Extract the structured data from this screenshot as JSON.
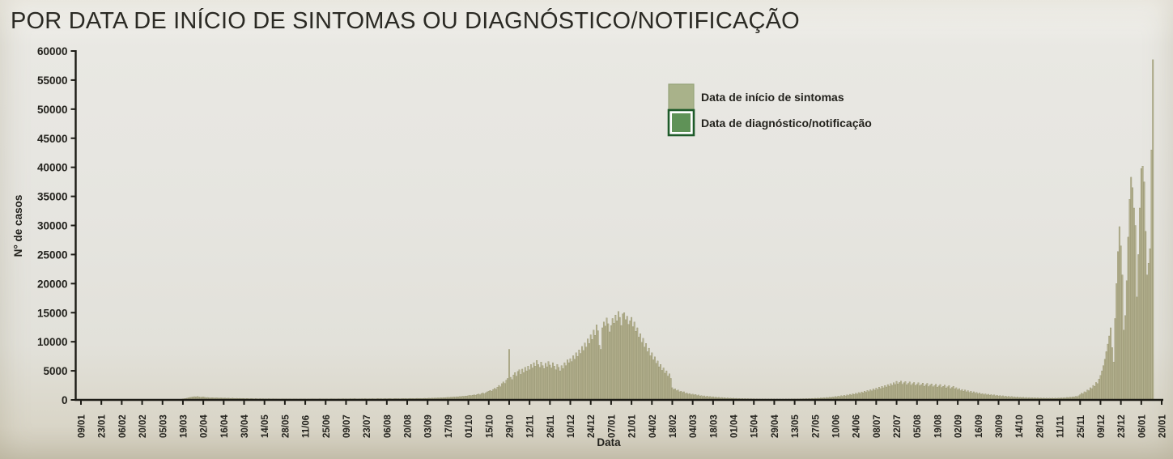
{
  "window": {
    "title": "POR DATA DE INÍCIO DE SINTOMAS OU DIAGNÓSTICO/NOTIFICAÇÃO"
  },
  "chart_data": {
    "type": "bar",
    "title": "POR DATA DE INÍCIO DE SINTOMAS OU DIAGNÓSTICO/NOTIFICAÇÃO",
    "xlabel": "Data",
    "ylabel": "N° de casos",
    "ylim": [
      0,
      60000
    ],
    "ytick_step": 5000,
    "grid": false,
    "axis_color": "#1d1c16",
    "x_tick_interval_days": 14,
    "x_tick_labels": [
      "09/01",
      "23/01",
      "06/02",
      "20/02",
      "05/03",
      "19/03",
      "02/04",
      "16/04",
      "30/04",
      "14/05",
      "28/05",
      "11/06",
      "25/06",
      "09/07",
      "23/07",
      "06/08",
      "20/08",
      "03/09",
      "17/09",
      "01/10",
      "15/10",
      "29/10",
      "12/11",
      "26/11",
      "10/12",
      "24/12",
      "07/01",
      "21/01",
      "04/02",
      "18/02",
      "04/03",
      "18/03",
      "01/04",
      "15/04",
      "29/04",
      "13/05",
      "27/05",
      "10/06",
      "24/06",
      "08/07",
      "22/07",
      "05/08",
      "19/08",
      "02/09",
      "16/09",
      "30/09",
      "14/10",
      "28/10",
      "11/11",
      "25/11",
      "09/12",
      "23/12",
      "06/01",
      "20/01"
    ],
    "legend_position": "top-center",
    "legend": [
      {
        "label": "Data de início de sintomas",
        "fill": "#a9b28a",
        "border": "#96a47a"
      },
      {
        "label": "Data de diagnóstico/notificação",
        "fill": "#5f9257",
        "border": "#1e5b2a"
      }
    ],
    "series": [
      {
        "name": "Data de início de sintomas",
        "color": "#b3b08e",
        "edge": "#8a8862",
        "values": [
          0,
          0,
          0,
          0,
          0,
          0,
          0,
          0,
          0,
          0,
          0,
          0,
          0,
          0,
          0,
          0,
          0,
          2,
          0,
          0,
          0,
          0,
          3,
          0,
          0,
          2,
          0,
          0,
          0,
          2,
          0,
          0,
          4,
          0,
          0,
          3,
          0,
          5,
          0,
          0,
          4,
          0,
          5,
          0,
          3,
          6,
          0,
          8,
          4,
          10,
          6,
          12,
          8,
          15,
          10,
          18,
          22,
          15,
          28,
          20,
          35,
          30,
          45,
          40,
          60,
          55,
          80,
          75,
          110,
          130,
          170,
          210,
          260,
          310,
          380,
          430,
          480,
          520,
          560,
          540,
          580,
          510,
          470,
          490,
          520,
          450,
          400,
          430,
          380,
          350,
          390,
          360,
          330,
          370,
          340,
          310,
          350,
          320,
          300,
          330,
          280,
          310,
          290,
          260,
          300,
          270,
          250,
          280,
          240,
          270,
          230,
          260,
          240,
          210,
          250,
          220,
          200,
          240,
          210,
          190,
          230,
          200,
          180,
          220,
          190,
          210,
          180,
          200,
          170,
          210,
          180,
          160,
          200,
          170,
          190,
          160,
          180,
          150,
          190,
          170,
          160,
          190,
          150,
          180,
          160,
          140,
          180,
          150,
          170,
          140,
          160,
          180,
          150,
          170,
          160,
          140,
          180,
          150,
          170,
          190,
          160,
          180,
          150,
          170,
          200,
          160,
          180,
          160,
          190,
          170,
          150,
          180,
          200,
          170,
          190,
          160,
          180,
          200,
          170,
          190,
          210,
          180,
          200,
          170,
          190,
          210,
          180,
          200,
          220,
          190,
          170,
          200,
          180,
          210,
          190,
          220,
          200,
          180,
          210,
          190,
          220,
          200,
          180,
          210,
          230,
          200,
          220,
          190,
          210,
          230,
          200,
          220,
          240,
          210,
          190,
          220,
          240,
          210,
          230,
          200,
          220,
          250,
          220,
          240,
          210,
          230,
          260,
          230,
          250,
          220,
          240,
          270,
          240,
          260,
          230,
          250,
          280,
          260,
          280,
          300,
          270,
          320,
          290,
          340,
          310,
          360,
          330,
          380,
          350,
          400,
          380,
          420,
          450,
          420,
          480,
          460,
          510,
          480,
          550,
          520,
          590,
          560,
          640,
          610,
          680,
          650,
          720,
          780,
          740,
          820,
          880,
          800,
          950,
          1020,
          900,
          1100,
          1200,
          1050,
          1250,
          1400,
          1500,
          1650,
          1500,
          1800,
          2000,
          1850,
          2200,
          2500,
          2250,
          2800,
          3100,
          2850,
          3400,
          3700,
          8700,
          3900,
          3500,
          4300,
          4700,
          4100,
          4900,
          5200,
          4400,
          5300,
          4700,
          5600,
          5000,
          5800,
          5200,
          6100,
          5500,
          6400,
          5800,
          6800,
          6100,
          5600,
          6500,
          5900,
          5400,
          6300,
          5700,
          6600,
          6000,
          5500,
          6400,
          5800,
          5200,
          6100,
          5600,
          5000,
          5900,
          5400,
          6400,
          5900,
          6900,
          6400,
          7100,
          6600,
          7600,
          7000,
          8100,
          7500,
          8600,
          8000,
          9200,
          8500,
          9800,
          9100,
          10500,
          9700,
          11200,
          10400,
          12000,
          11100,
          12900,
          11900,
          9400,
          8700,
          12400,
          13400,
          12700,
          14100,
          13100,
          11700,
          12800,
          14000,
          13200,
          14600,
          13600,
          15200,
          14200,
          12800,
          14800,
          15000,
          13800,
          14400,
          13000,
          13600,
          14200,
          12600,
          13400,
          11800,
          12400,
          10800,
          11400,
          9900,
          10600,
          9100,
          9700,
          8300,
          8900,
          7600,
          8100,
          6900,
          7400,
          6300,
          6700,
          5700,
          6100,
          5100,
          5500,
          4600,
          5000,
          4100,
          4500,
          3700,
          2100,
          1800,
          1900,
          1600,
          1700,
          1400,
          1500,
          1300,
          1400,
          1100,
          1200,
          1000,
          1100,
          900,
          1000,
          850,
          950,
          750,
          850,
          650,
          750,
          600,
          700,
          550,
          650,
          500,
          600,
          450,
          550,
          420,
          500,
          380,
          460,
          340,
          420,
          310,
          390,
          280,
          360,
          260,
          330,
          240,
          300,
          220,
          280,
          200,
          260,
          190,
          240,
          180,
          230,
          170,
          220,
          160,
          210,
          150,
          200,
          140,
          190,
          135,
          185,
          130,
          180,
          125,
          175,
          120,
          170,
          120,
          165,
          115,
          160,
          115,
          160,
          110,
          155,
          110,
          155,
          115,
          160,
          120,
          165,
          125,
          170,
          130,
          180,
          135,
          185,
          145,
          195,
          155,
          210,
          165,
          225,
          180,
          240,
          195,
          260,
          210,
          290,
          230,
          320,
          260,
          350,
          290,
          390,
          320,
          430,
          360,
          480,
          400,
          530,
          450,
          590,
          500,
          650,
          560,
          720,
          620,
          800,
          690,
          880,
          760,
          970,
          840,
          1060,
          930,
          1160,
          1020,
          1270,
          1120,
          1380,
          1220,
          1500,
          1330,
          1620,
          1440,
          1750,
          1560,
          1890,
          1680,
          2030,
          1810,
          2180,
          1950,
          2330,
          2090,
          2480,
          2230,
          2640,
          2370,
          2800,
          2510,
          2960,
          2650,
          3200,
          2750,
          3000,
          3250,
          2700,
          2950,
          3150,
          2600,
          2850,
          3100,
          2550,
          2800,
          3000,
          2500,
          2700,
          2950,
          2450,
          2650,
          2900,
          2350,
          2600,
          2850,
          2300,
          2550,
          2750,
          2250,
          2450,
          2700,
          2200,
          2400,
          2650,
          2150,
          2350,
          2550,
          2050,
          2250,
          2450,
          1950,
          2150,
          2350,
          1900,
          2100,
          1750,
          1950,
          1600,
          1800,
          1500,
          1700,
          1400,
          1600,
          1300,
          1500,
          1200,
          1400,
          1150,
          1300,
          1050,
          1200,
          980,
          1100,
          900,
          1050,
          850,
          980,
          800,
          920,
          750,
          870,
          700,
          820,
          650,
          760,
          600,
          710,
          560,
          660,
          520,
          620,
          480,
          580,
          450,
          540,
          420,
          510,
          390,
          480,
          370,
          450,
          350,
          430,
          330,
          410,
          320,
          390,
          300,
          380,
          290,
          360,
          280,
          350,
          270,
          340,
          270,
          330,
          260,
          330,
          260,
          320,
          260,
          330,
          270,
          340,
          290,
          360,
          310,
          390,
          340,
          430,
          380,
          480,
          430,
          540,
          490,
          620,
          560,
          710,
          900,
          1150,
          1050,
          1400,
          1300,
          1700,
          1600,
          2100,
          1950,
          2500,
          2350,
          3000,
          2800,
          3600,
          4200,
          5000,
          5900,
          7000,
          8300,
          9600,
          11000,
          12400,
          9000,
          6500,
          14000,
          20000,
          25500,
          29800,
          26500,
          21500,
          12000,
          14500,
          20500,
          28000,
          34500,
          38300,
          36500,
          33000,
          30000,
          17700,
          25000,
          33000,
          39800,
          40200,
          37500,
          29000,
          21500,
          23500,
          26000,
          43000,
          58500
        ]
      },
      {
        "name": "Data de diagnóstico/notificação",
        "color": "#5f9257",
        "edge": "#1e5b2a",
        "values": []
      }
    ]
  }
}
